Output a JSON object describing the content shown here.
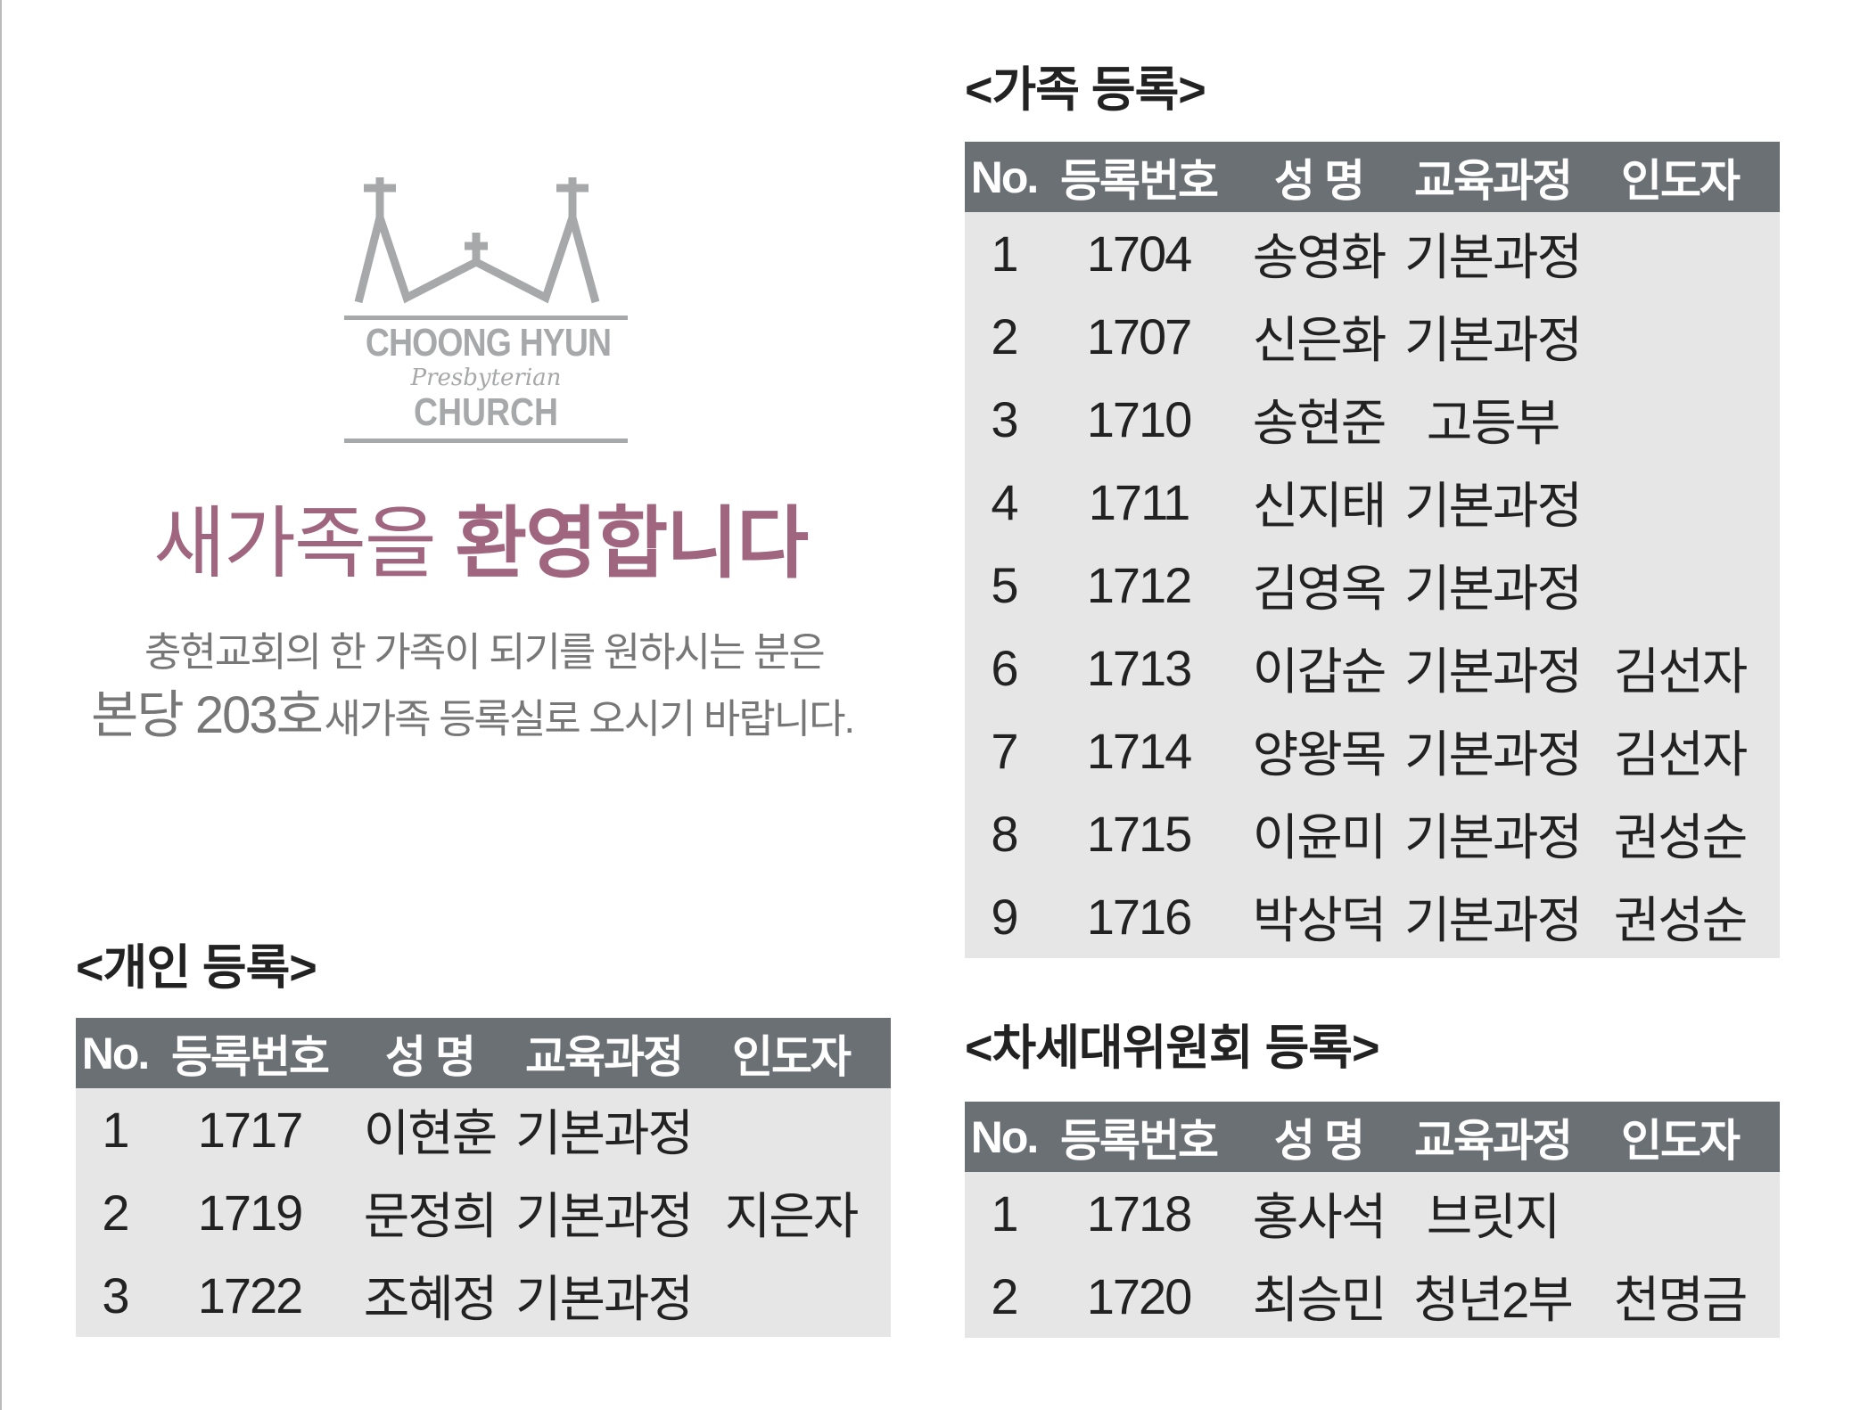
{
  "logo": {
    "line1": "CHOONG HYUN",
    "line2": "Presbyterian",
    "line3": "CHURCH",
    "color": "#a7a8aa"
  },
  "welcome": {
    "part1": "새가족을",
    "part2": "환영합니다",
    "color": "#a0667f"
  },
  "subtitle": {
    "line1": "충현교회의 한 가족이 되기를 원하시는 분은",
    "line2_big": "본당 203호",
    "line2_rest": "새가족 등록실로 오시기 바랍니다."
  },
  "headers": [
    "No.",
    "등록번호",
    "성 명",
    "교육과정",
    "인도자"
  ],
  "family": {
    "title": "<가족 등록>",
    "rows": [
      [
        "1",
        "1704",
        "송영화",
        "기본과정",
        ""
      ],
      [
        "2",
        "1707",
        "신은화",
        "기본과정",
        ""
      ],
      [
        "3",
        "1710",
        "송현준",
        "고등부",
        ""
      ],
      [
        "4",
        "1711",
        "신지태",
        "기본과정",
        ""
      ],
      [
        "5",
        "1712",
        "김영옥",
        "기본과정",
        ""
      ],
      [
        "6",
        "1713",
        "이갑순",
        "기본과정",
        "김선자"
      ],
      [
        "7",
        "1714",
        "양왕목",
        "기본과정",
        "김선자"
      ],
      [
        "8",
        "1715",
        "이윤미",
        "기본과정",
        "권성순"
      ],
      [
        "9",
        "1716",
        "박상덕",
        "기본과정",
        "권성순"
      ]
    ]
  },
  "individual": {
    "title": "<개인 등록>",
    "rows": [
      [
        "1",
        "1717",
        "이현훈",
        "기본과정",
        ""
      ],
      [
        "2",
        "1719",
        "문정희",
        "기본과정",
        "지은자"
      ],
      [
        "3",
        "1722",
        "조혜정",
        "기본과정",
        ""
      ]
    ]
  },
  "nextgen": {
    "title": "<차세대위원회 등록>",
    "rows": [
      [
        "1",
        "1718",
        "홍사석",
        "브릿지",
        ""
      ],
      [
        "2",
        "1720",
        "최승민",
        "청년2부",
        "천명금"
      ]
    ]
  },
  "colors": {
    "table_header": "#6b7075",
    "table_body": "#e6e6e6"
  }
}
